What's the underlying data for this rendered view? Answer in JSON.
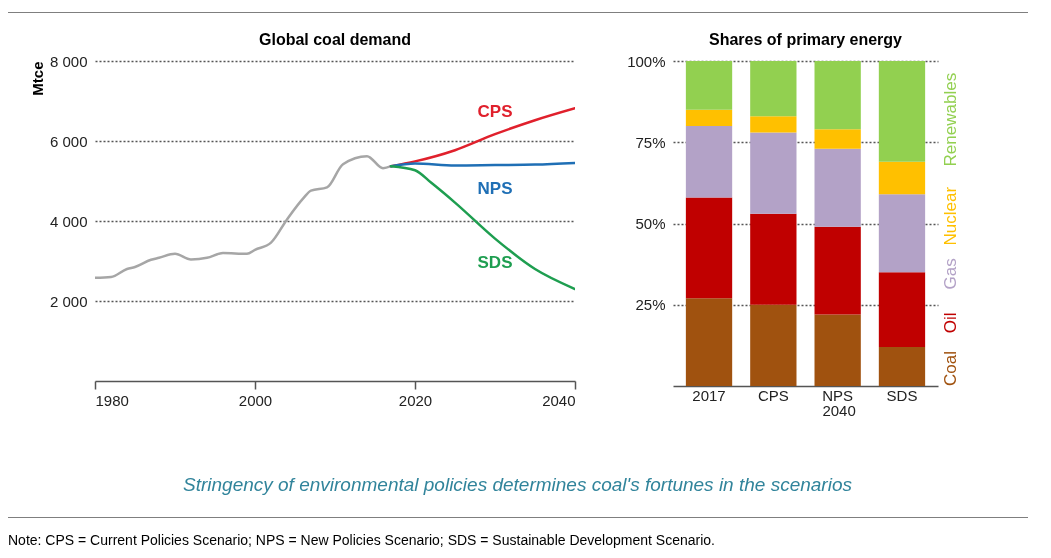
{
  "chart_data": [
    {
      "type": "line",
      "title": "Global coal demand",
      "ylabel": "Mtce",
      "xlim": [
        1980,
        2040
      ],
      "xticks": [
        1980,
        2000,
        2020,
        2040
      ],
      "ylim": [
        0,
        8000
      ],
      "yticks": [
        {
          "value": 2000,
          "label": "2 000"
        },
        {
          "value": 4000,
          "label": "4 000"
        },
        {
          "value": 6000,
          "label": "6 000"
        },
        {
          "value": 8000,
          "label": "8 000"
        }
      ],
      "grid": "y",
      "series": [
        {
          "color": "#a6a6a6",
          "x": [
            1980,
            1982,
            1984,
            1985,
            1987,
            1988,
            1990,
            1992,
            1994,
            1996,
            1999,
            2000,
            2002,
            2004,
            2006,
            2007,
            2009,
            2011,
            2014,
            2016,
            2017
          ],
          "values": [
            2580,
            2600,
            2800,
            2850,
            3030,
            3080,
            3180,
            3040,
            3080,
            3200,
            3180,
            3280,
            3460,
            4040,
            4560,
            4760,
            4840,
            5420,
            5620,
            5320,
            5370
          ]
        },
        {
          "name": "CPS",
          "color": "#e0202c",
          "x": [
            2017,
            2020,
            2025,
            2030,
            2035,
            2040
          ],
          "values": [
            5370,
            5490,
            5770,
            6170,
            6520,
            6820
          ]
        },
        {
          "name": "NPS",
          "color": "#1f6fb5",
          "x": [
            2017,
            2020,
            2025,
            2030,
            2035,
            2040
          ],
          "values": [
            5370,
            5440,
            5390,
            5400,
            5410,
            5450
          ]
        },
        {
          "name": "SDS",
          "color": "#1e9e50",
          "x": [
            2017,
            2020,
            2022,
            2025,
            2030,
            2035,
            2040
          ],
          "values": [
            5370,
            5270,
            4960,
            4460,
            3560,
            2800,
            2300
          ]
        }
      ],
      "annotations": [
        "Stringency of environmental policies determines coal's fortunes in the scenarios",
        "Note: CPS = Current Policies Scenario; NPS = New Policies Scenario; SDS = Sustainable Development Scenario."
      ]
    },
    {
      "type": "bar",
      "title": "Shares of primary energy",
      "xlabel": "2040",
      "categories": [
        "2017",
        "CPS",
        "NPS",
        "SDS"
      ],
      "stacked": true,
      "ylim": [
        0,
        100
      ],
      "yticks": [
        {
          "value": 25,
          "label": "25%"
        },
        {
          "value": 50,
          "label": "50%"
        },
        {
          "value": 75,
          "label": "75%"
        },
        {
          "value": 100,
          "label": "100%"
        }
      ],
      "grid": "y",
      "legend": "right",
      "series": [
        {
          "name": "Coal",
          "color": "#a0520f",
          "values": [
            27,
            25,
            22,
            12
          ]
        },
        {
          "name": "Oil",
          "color": "#c00000",
          "values": [
            31,
            28,
            27,
            23
          ]
        },
        {
          "name": "Gas",
          "color": "#b3a2c7",
          "values": [
            22,
            25,
            24,
            24
          ]
        },
        {
          "name": "Nuclear",
          "color": "#ffc000",
          "values": [
            5,
            5,
            6,
            10
          ]
        },
        {
          "name": "Renewables",
          "color": "#92d050",
          "values": [
            15,
            17,
            21,
            31
          ]
        }
      ]
    }
  ]
}
